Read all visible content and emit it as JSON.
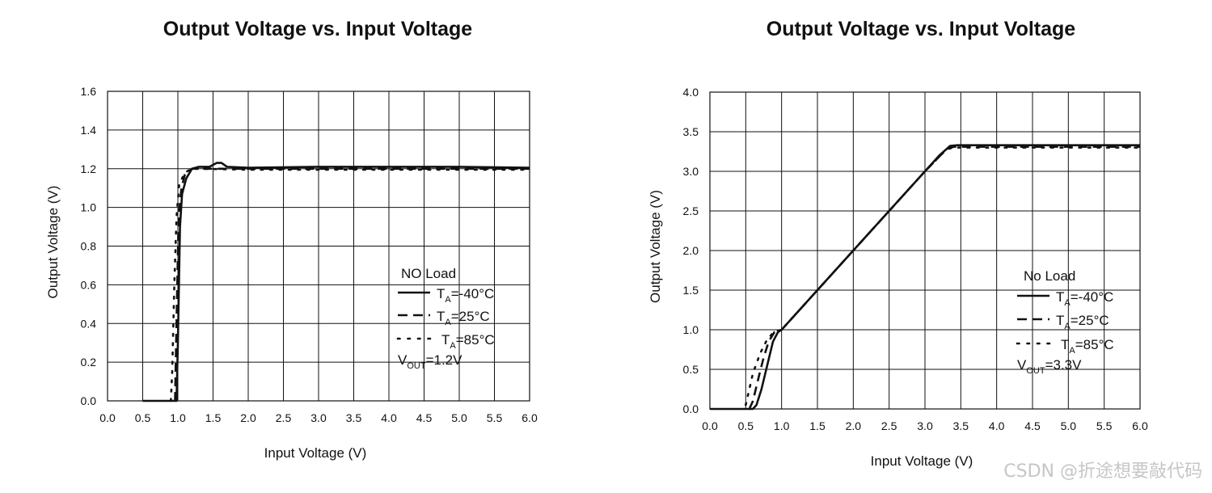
{
  "chart_data": [
    {
      "type": "line",
      "title": "Output Voltage vs. Input Voltage",
      "xlabel": "Input Voltage (V)",
      "ylabel": "Output Voltage (V)",
      "xlim": [
        0,
        6.0
      ],
      "ylim": [
        0,
        1.6
      ],
      "xticks": [
        "0.0",
        "0.5",
        "1.0",
        "1.5",
        "2.0",
        "2.5",
        "3.0",
        "3.5",
        "4.0",
        "4.5",
        "5.0",
        "5.5",
        "6.0"
      ],
      "yticks": [
        "0.0",
        "0.2",
        "0.4",
        "0.6",
        "0.8",
        "1.0",
        "1.2",
        "1.4",
        "1.6"
      ],
      "grid": true,
      "legend_placement": "bottom-right",
      "legend_title": "NO Load",
      "legend_note": {
        "main": "V",
        "sub": "OUT",
        "rest": "=1.2V"
      },
      "series": [
        {
          "name": {
            "main": "T",
            "sub": "A",
            "rest": "=-40°C"
          },
          "style": "solid",
          "x": [
            0.5,
            0.98,
            1.0,
            1.03,
            1.06,
            1.12,
            1.2,
            1.3,
            1.45,
            1.55,
            1.62,
            1.7,
            2.0,
            3.0,
            4.0,
            5.0,
            6.0
          ],
          "y": [
            0.0,
            0.0,
            0.3,
            0.9,
            1.07,
            1.15,
            1.2,
            1.21,
            1.21,
            1.23,
            1.23,
            1.21,
            1.205,
            1.21,
            1.21,
            1.21,
            1.205
          ]
        },
        {
          "name": {
            "main": "T",
            "sub": "A",
            "rest": "=25°C"
          },
          "style": "dashed",
          "x": [
            0.96,
            0.98,
            1.01,
            1.05,
            1.1,
            1.2,
            1.3,
            2.0,
            3.0,
            4.0,
            5.0,
            6.0
          ],
          "y": [
            0.0,
            0.4,
            0.95,
            1.1,
            1.17,
            1.2,
            1.2,
            1.2,
            1.2,
            1.2,
            1.2,
            1.2
          ]
        },
        {
          "name": {
            "main": "T",
            "sub": "A",
            "rest": "=85°C"
          },
          "style": "dotted",
          "x": [
            0.9,
            0.92,
            0.95,
            0.98,
            1.02,
            1.1,
            1.2,
            1.3,
            2.0,
            3.0,
            4.0,
            5.0,
            6.0
          ],
          "y": [
            0.0,
            0.15,
            0.6,
            0.95,
            1.12,
            1.18,
            1.2,
            1.2,
            1.195,
            1.195,
            1.195,
            1.195,
            1.195
          ]
        }
      ]
    },
    {
      "type": "line",
      "title": "Output Voltage vs. Input Voltage",
      "xlabel": "Input Voltage (V)",
      "ylabel": "Output Voltage (V)",
      "xlim": [
        0,
        6.0
      ],
      "ylim": [
        0,
        4.0
      ],
      "xticks": [
        "0.0",
        "0.5",
        "1.0",
        "1.5",
        "2.0",
        "2.5",
        "3.0",
        "3.5",
        "4.0",
        "4.5",
        "5.0",
        "5.5",
        "6.0"
      ],
      "yticks": [
        "0.0",
        "0.5",
        "1.0",
        "1.5",
        "2.0",
        "2.5",
        "3.0",
        "3.5",
        "4.0"
      ],
      "grid": true,
      "legend_placement": "bottom-right",
      "legend_title": "No Load",
      "legend_note": {
        "main": "V",
        "sub": "OUT",
        "rest": "=3.3V"
      },
      "series": [
        {
          "name": {
            "main": "T",
            "sub": "A",
            "rest": "=-40°C"
          },
          "style": "solid",
          "x": [
            0.0,
            0.6,
            0.65,
            0.72,
            0.8,
            0.88,
            0.95,
            1.0,
            2.0,
            3.0,
            3.2,
            3.35,
            3.45,
            4.0,
            5.0,
            6.0
          ],
          "y": [
            0.0,
            0.0,
            0.05,
            0.25,
            0.55,
            0.85,
            0.97,
            1.0,
            2.0,
            3.0,
            3.2,
            3.32,
            3.33,
            3.33,
            3.33,
            3.33
          ]
        },
        {
          "name": {
            "main": "T",
            "sub": "A",
            "rest": "=25°C"
          },
          "style": "dashed",
          "x": [
            0.55,
            0.6,
            0.68,
            0.75,
            0.82,
            0.9,
            1.0,
            2.0,
            3.0,
            3.3,
            3.4,
            4.0,
            5.0,
            6.0
          ],
          "y": [
            0.0,
            0.1,
            0.4,
            0.65,
            0.85,
            0.97,
            1.0,
            2.0,
            3.0,
            3.28,
            3.31,
            3.31,
            3.31,
            3.31
          ]
        },
        {
          "name": {
            "main": "T",
            "sub": "A",
            "rest": "=85°C"
          },
          "style": "dotted",
          "x": [
            0.5,
            0.55,
            0.6,
            0.7,
            0.8,
            0.9,
            1.0,
            2.0,
            3.0,
            3.3,
            3.4,
            4.0,
            5.0,
            6.0
          ],
          "y": [
            0.05,
            0.25,
            0.45,
            0.7,
            0.88,
            0.98,
            1.0,
            2.0,
            3.0,
            3.28,
            3.3,
            3.3,
            3.3,
            3.3
          ]
        }
      ]
    }
  ],
  "watermark": "CSDN @折途想要敲代码"
}
